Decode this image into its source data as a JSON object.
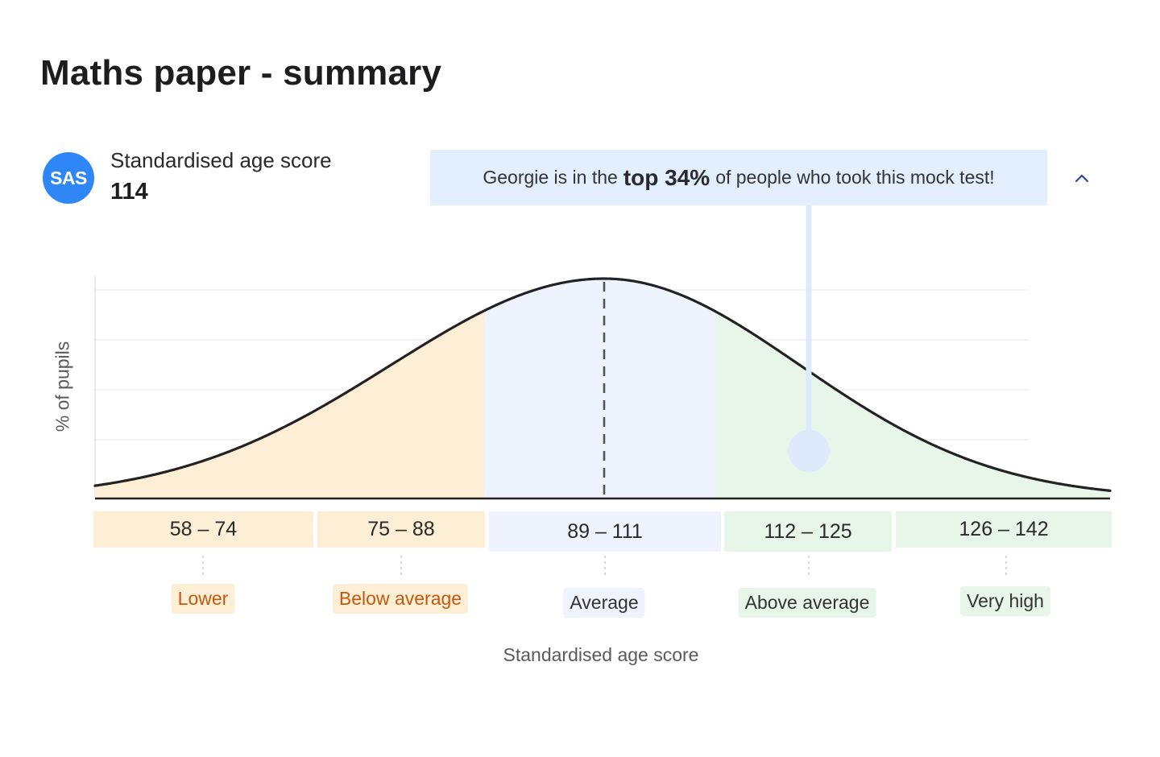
{
  "page": {
    "title": "Maths paper - summary"
  },
  "score": {
    "badge": "SAS",
    "label": "Standardised age score",
    "value": "114"
  },
  "callout": {
    "prefix": "Georgie is in the",
    "highlight": "top 34%",
    "suffix": "of people who took this mock test!"
  },
  "colors": {
    "lower": "#fdefd6",
    "lower_text": "#c5570e",
    "average": "#eef3fe",
    "above": "#e8f5e9",
    "marker": "#deeafb",
    "curve": "#222222",
    "accent": "#2f86f6"
  },
  "chart_data": {
    "type": "area",
    "xlabel": "Standardised age score",
    "ylabel": "% of pupils",
    "mean": 100,
    "pupil_score": 114,
    "ranges": [
      {
        "label": "58 – 74",
        "band": "Lower",
        "min": 58,
        "max": 74
      },
      {
        "label": "75 – 88",
        "band": "Below average",
        "min": 75,
        "max": 88
      },
      {
        "label": "89 – 111",
        "band": "Average",
        "min": 89,
        "max": 111
      },
      {
        "label": "112 – 125",
        "band": "Above average",
        "min": 112,
        "max": 125
      },
      {
        "label": "126 – 142",
        "band": "Very high",
        "min": 126,
        "max": 142
      }
    ],
    "grid": true,
    "legend": "none"
  }
}
